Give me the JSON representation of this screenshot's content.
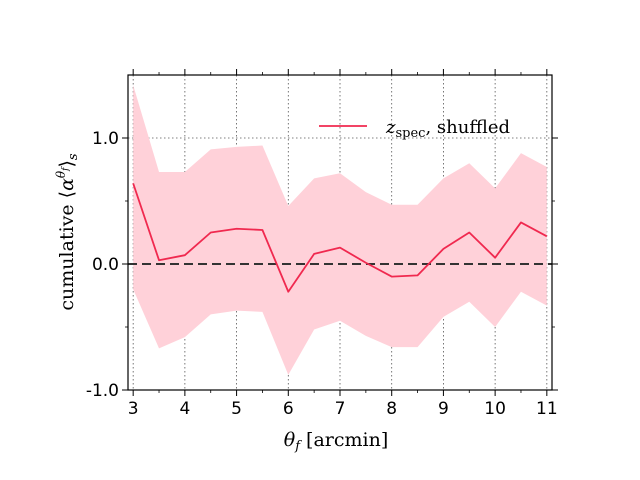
{
  "chart_data": {
    "type": "line",
    "x": [
      3,
      3.5,
      4,
      4.5,
      5,
      5.5,
      6,
      6.5,
      7,
      7.5,
      8,
      8.5,
      9,
      9.5,
      10,
      10.5,
      11
    ],
    "series": [
      {
        "name": "z_spec, shuffled",
        "values": [
          0.64,
          0.03,
          0.07,
          0.25,
          0.28,
          0.27,
          -0.22,
          0.08,
          0.13,
          0.01,
          -0.1,
          -0.09,
          0.12,
          0.25,
          0.05,
          0.33,
          0.22
        ],
        "band_upper": [
          1.42,
          0.73,
          0.73,
          0.91,
          0.93,
          0.94,
          0.46,
          0.68,
          0.72,
          0.57,
          0.47,
          0.47,
          0.68,
          0.8,
          0.6,
          0.88,
          0.77
        ],
        "band_lower": [
          -0.2,
          -0.67,
          -0.58,
          -0.4,
          -0.37,
          -0.38,
          -0.88,
          -0.52,
          -0.45,
          -0.57,
          -0.66,
          -0.66,
          -0.42,
          -0.3,
          -0.5,
          -0.22,
          -0.33
        ],
        "color": "#f0294f",
        "band_color": "#ffd1d9"
      }
    ],
    "reference_line": {
      "y": 0,
      "style": "dashed",
      "color": "#333333"
    },
    "xlim": [
      2.9,
      11.1
    ],
    "ylim": [
      -1.0,
      1.5
    ],
    "xticks": [
      3,
      4,
      5,
      6,
      7,
      8,
      9,
      10,
      11
    ],
    "xtick_labels": [
      "3",
      "4",
      "5",
      "6",
      "7",
      "8",
      "9",
      "10",
      "11"
    ],
    "yticks": [
      -1.0,
      0.0,
      1.0
    ],
    "ytick_labels": [
      "-1.0",
      "0.0",
      "1.0"
    ],
    "xlabel": "θ_f [arcmin]",
    "ylabel": "cumulative ⟨α^θ_f⟩_s",
    "legend": {
      "position": "top-right",
      "label_main": "z",
      "label_sub": "spec",
      "label_rest": ", shuffled"
    },
    "grid": true
  }
}
